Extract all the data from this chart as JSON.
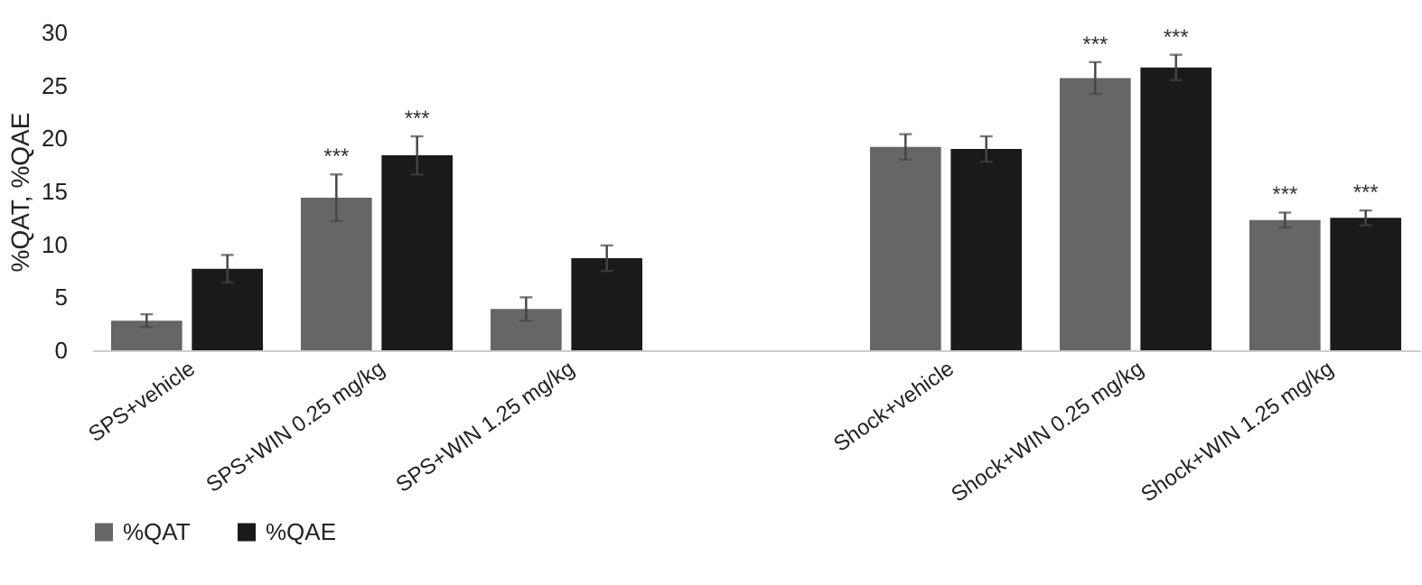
{
  "chart_data": {
    "type": "bar",
    "ylabel": "%QAT, %QAE",
    "categories": [
      "SPS+vehicle",
      "SPS+WIN 0.25 mg/kg",
      "SPS+WIN 1.25 mg/kg",
      null,
      "Shock+vehicle",
      "Shock+WIN 0.25 mg/kg",
      "Shock+WIN 1.25 mg/kg"
    ],
    "series": [
      {
        "name": "%QAT",
        "color": "#666666",
        "values": [
          2.8,
          14.4,
          3.9,
          null,
          19.2,
          25.7,
          12.3
        ],
        "errors": [
          0.6,
          2.2,
          1.1,
          null,
          1.2,
          1.5,
          0.7
        ]
      },
      {
        "name": "%QAE",
        "color": "#1a1a1a",
        "values": [
          7.7,
          18.4,
          8.7,
          null,
          19.0,
          26.7,
          12.5
        ],
        "errors": [
          1.3,
          1.8,
          1.2,
          null,
          1.2,
          1.2,
          0.7
        ]
      }
    ],
    "ylim": [
      0,
      30
    ],
    "yticks": [
      0,
      5,
      10,
      15,
      20,
      25,
      30
    ],
    "grid": false,
    "legend": "bottom",
    "annotations": [
      {
        "text": "***",
        "x": "SPS+WIN 0.25 mg/kg",
        "y": 14.4
      },
      {
        "text": "***",
        "x": "SPS+WIN 0.25 mg/kg",
        "y": 18.4
      },
      {
        "text": "***",
        "x": "Shock+WIN 0.25 mg/kg",
        "y": 25.7
      },
      {
        "text": "***",
        "x": "Shock+WIN 0.25 mg/kg",
        "y": 26.7
      },
      {
        "text": "***",
        "x": "Shock+WIN 1.25 mg/kg",
        "y": 12.3
      },
      {
        "text": "***",
        "x": "Shock+WIN 1.25 mg/kg",
        "y": 12.5
      }
    ]
  }
}
